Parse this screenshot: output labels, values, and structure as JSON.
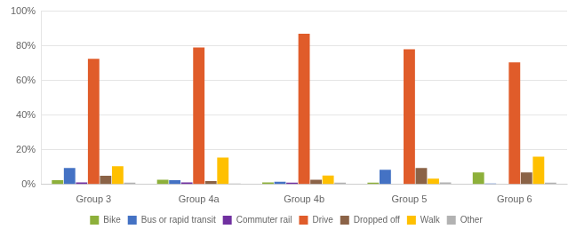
{
  "chart_data": {
    "type": "bar",
    "categories": [
      "Group 3",
      "Group 4a",
      "Group 4b",
      "Group 5",
      "Group 6"
    ],
    "series": [
      {
        "name": "Bike",
        "color": "#8DB03A",
        "values": [
          0.025,
          0.027,
          0.012,
          0.01,
          0.07
        ]
      },
      {
        "name": "Bus or rapid transit",
        "color": "#4472C4",
        "values": [
          0.095,
          0.025,
          0.015,
          0.085,
          0.005
        ]
      },
      {
        "name": "Commuter rail",
        "color": "#7030A0",
        "values": [
          0.012,
          0.012,
          0.01,
          0.0,
          0.0
        ]
      },
      {
        "name": "Drive",
        "color": "#E05C2A",
        "values": [
          0.725,
          0.79,
          0.87,
          0.78,
          0.705
        ]
      },
      {
        "name": "Dropped off",
        "color": "#8B6347",
        "values": [
          0.05,
          0.02,
          0.027,
          0.095,
          0.07
        ]
      },
      {
        "name": "Walk",
        "color": "#FFC000",
        "values": [
          0.105,
          0.155,
          0.052,
          0.033,
          0.16
        ]
      },
      {
        "name": "Other",
        "color": "#B2B2B2",
        "values": [
          0.01,
          0.005,
          0.01,
          0.012,
          0.01
        ]
      }
    ],
    "ylim": [
      0,
      1.0
    ],
    "yticks": [
      {
        "value": 0,
        "label": "0%"
      },
      {
        "value": 0.2,
        "label": "20%"
      },
      {
        "value": 0.4,
        "label": "40%"
      },
      {
        "value": 0.6,
        "label": "60%"
      },
      {
        "value": 0.8,
        "label": "80%"
      },
      {
        "value": 1.0,
        "label": "100%"
      }
    ],
    "grid": "y",
    "legend": "bottom"
  }
}
